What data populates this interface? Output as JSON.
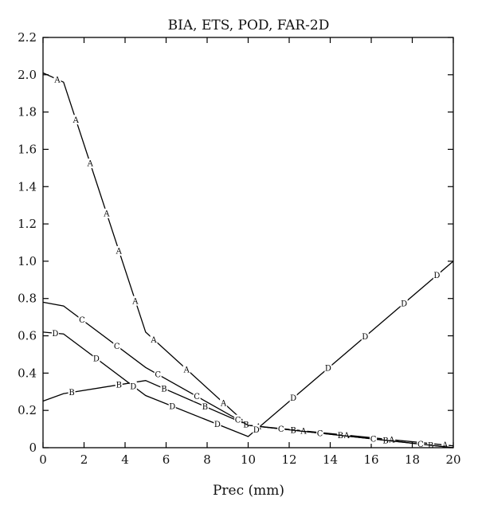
{
  "chart_data": {
    "type": "line",
    "title": "BIA, ETS, POD, FAR-2D",
    "xlabel": "Prec (mm)",
    "ylabel": "",
    "xlim": [
      0,
      20
    ],
    "ylim": [
      0,
      2.2
    ],
    "xticks": [
      0,
      2,
      4,
      6,
      8,
      10,
      12,
      14,
      16,
      18,
      20
    ],
    "yticks": [
      0,
      0.2,
      0.4,
      0.6,
      0.8,
      1.0,
      1.2,
      1.4,
      1.6,
      1.8,
      2.0,
      2.2
    ],
    "ytick_labels": [
      "0",
      "0.2",
      "0.4",
      "0.6",
      "0.8",
      "1.0",
      "1.2",
      "1.4",
      "1.6",
      "1.8",
      "2.0",
      "2.2"
    ],
    "grid": false,
    "legend": "none",
    "series": [
      {
        "marker": "A",
        "x": [
          0,
          1,
          5,
          10,
          20
        ],
        "y": [
          2.01,
          1.96,
          0.62,
          0.12,
          0.01
        ],
        "marker_x": [
          0.7,
          1.6,
          2.3,
          3.1,
          3.7,
          4.5,
          5.4,
          7.0,
          8.8,
          10.5,
          12.7,
          14.8,
          17.0,
          19.6
        ]
      },
      {
        "marker": "B",
        "x": [
          0,
          1,
          5,
          10,
          20
        ],
        "y": [
          0.25,
          0.29,
          0.36,
          0.12,
          0.0
        ],
        "marker_x": [
          1.4,
          3.7,
          5.9,
          7.9,
          9.9,
          12.2,
          14.5,
          16.7,
          18.9
        ]
      },
      {
        "marker": "C",
        "x": [
          0,
          1,
          5,
          10,
          20
        ],
        "y": [
          0.78,
          0.76,
          0.43,
          0.12,
          0.0
        ],
        "marker_x": [
          1.9,
          3.6,
          5.6,
          7.5,
          9.5,
          11.6,
          13.5,
          16.1,
          18.4
        ]
      },
      {
        "marker": "D",
        "x": [
          0,
          1,
          5,
          10,
          20
        ],
        "y": [
          0.62,
          0.61,
          0.28,
          0.06,
          1.0
        ],
        "marker_x": [
          0.6,
          2.6,
          4.4,
          6.3,
          8.5,
          10.4,
          12.2,
          13.9,
          15.7,
          17.6,
          19.2
        ]
      }
    ]
  }
}
